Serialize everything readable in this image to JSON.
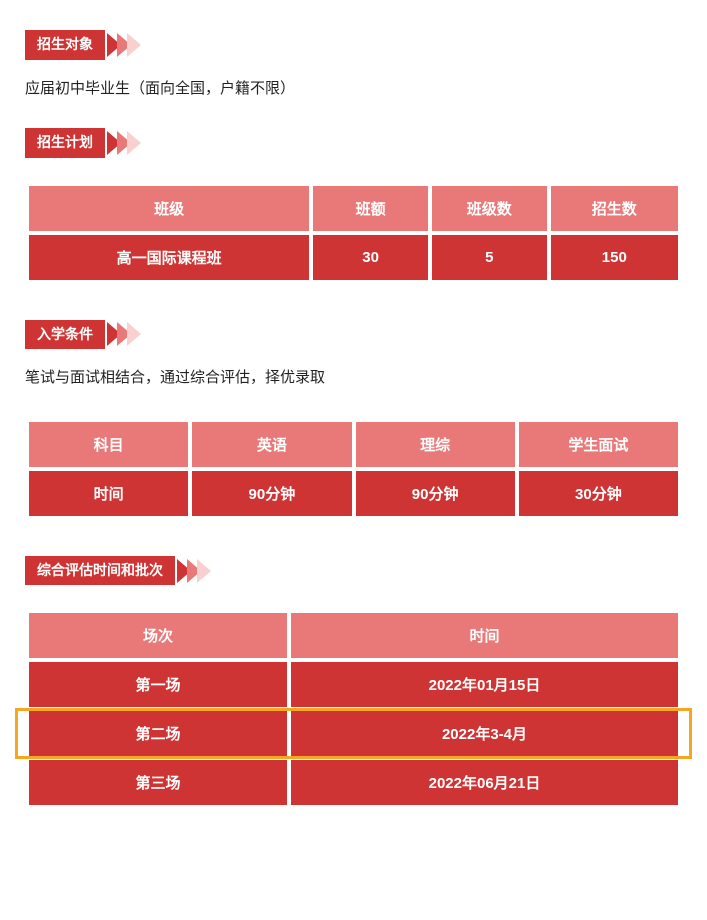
{
  "colors": {
    "primary": "#cf3434",
    "light": "#e97878",
    "pale": "#f9d0d0",
    "highlight_border": "#f5a623",
    "text": "#222222",
    "white": "#ffffff"
  },
  "sections": {
    "s1": {
      "title": "招生对象",
      "body": "应届初中毕业生（面向全国，户籍不限）"
    },
    "s2": {
      "title": "招生计划",
      "table": {
        "columns": [
          "班级",
          "班额",
          "班级数",
          "招生数"
        ],
        "col_widths_pct": [
          44,
          18,
          18,
          20
        ],
        "rows": [
          [
            "高一国际课程班",
            "30",
            "5",
            "150"
          ]
        ]
      }
    },
    "s3": {
      "title": "入学条件",
      "body": "笔试与面试相结合，通过综合评估，择优录取",
      "table": {
        "columns": [
          "科目",
          "英语",
          "理综",
          "学生面试"
        ],
        "col_widths_pct": [
          25,
          25,
          25,
          25
        ],
        "rows": [
          [
            "时间",
            "90分钟",
            "90分钟",
            "30分钟"
          ]
        ]
      }
    },
    "s4": {
      "title": "综合评估时间和批次",
      "table": {
        "columns": [
          "场次",
          "时间"
        ],
        "col_widths_pct": [
          40,
          60
        ],
        "rows": [
          [
            "第一场",
            "2022年01月15日"
          ],
          [
            "第二场",
            "2022年3-4月"
          ],
          [
            "第三场",
            "2022年06月21日"
          ]
        ],
        "highlight_row_index": 1
      }
    }
  }
}
